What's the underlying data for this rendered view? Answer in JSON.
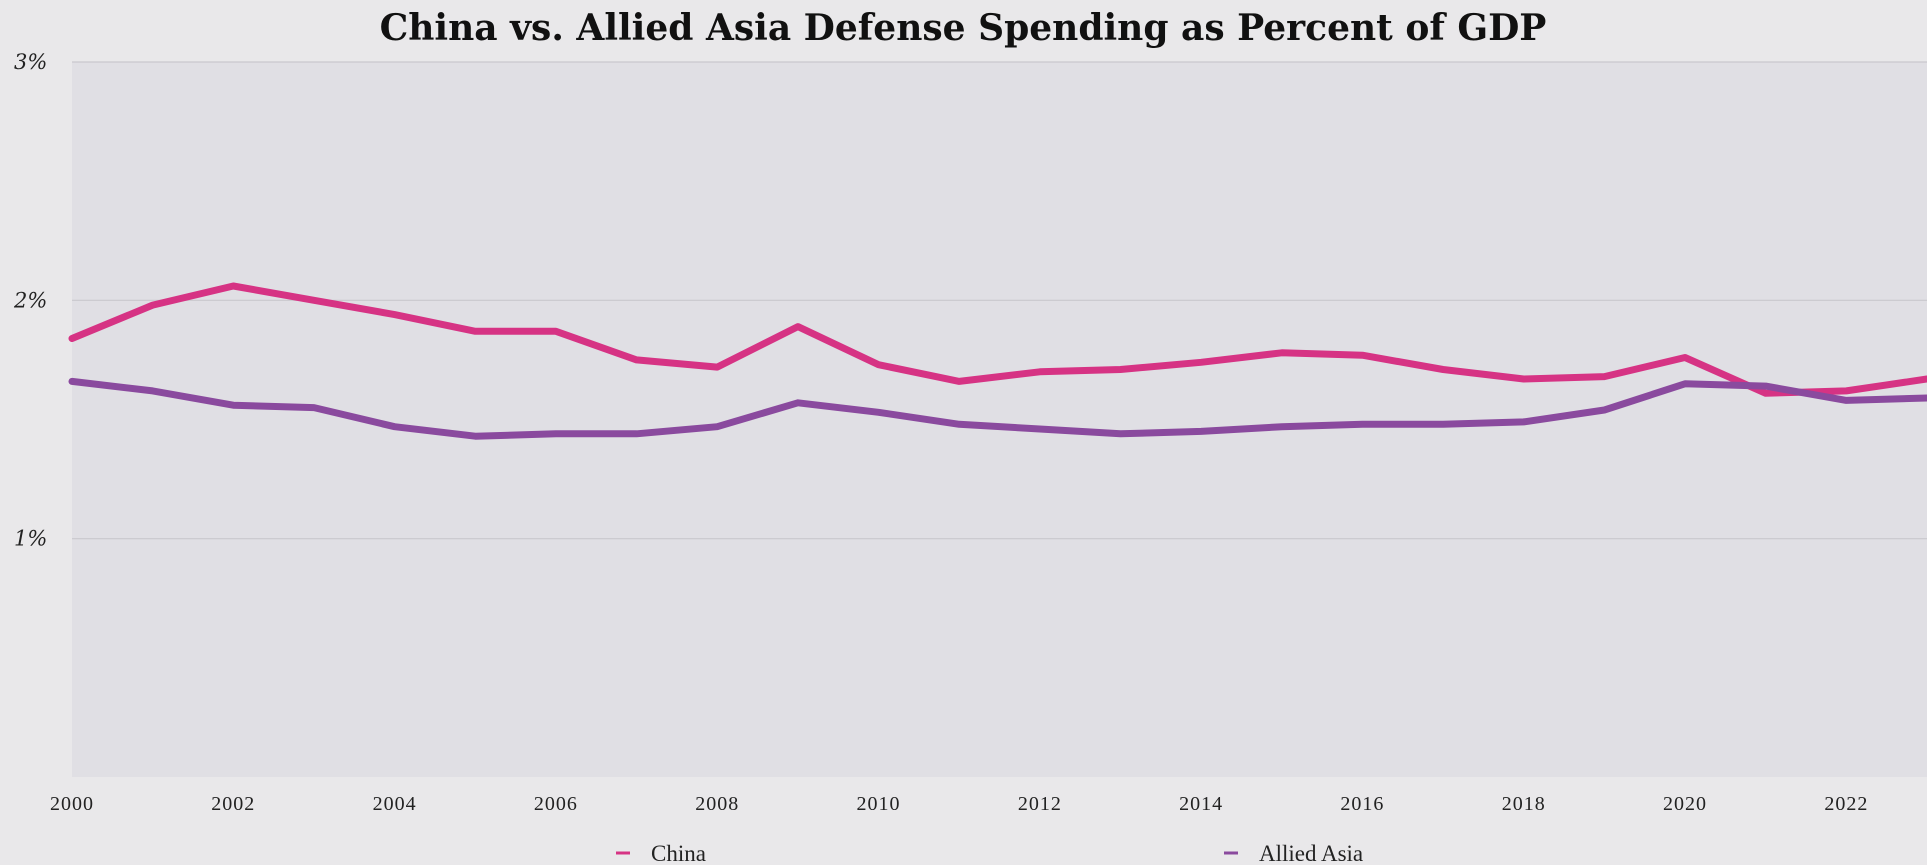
{
  "chart_data": {
    "type": "line",
    "title": "China vs. Allied Asia Defense Spending as Percent of GDP",
    "xlabel": "",
    "ylabel": "",
    "x": [
      2000,
      2001,
      2002,
      2003,
      2004,
      2005,
      2006,
      2007,
      2008,
      2009,
      2010,
      2011,
      2012,
      2013,
      2014,
      2015,
      2016,
      2017,
      2018,
      2019,
      2020,
      2021,
      2022,
      2023
    ],
    "xlim": [
      2000,
      2023
    ],
    "ylim": [
      0,
      3
    ],
    "xticks": [
      "2000",
      "2002",
      "2004",
      "2006",
      "2008",
      "2010",
      "2012",
      "2014",
      "2016",
      "2018",
      "2020",
      "2022"
    ],
    "xtick_values": [
      2000,
      2002,
      2004,
      2006,
      2008,
      2010,
      2012,
      2014,
      2016,
      2018,
      2020,
      2022
    ],
    "yticks": [
      "1%",
      "2%",
      "3%"
    ],
    "ytick_values": [
      1,
      2,
      3
    ],
    "grid": "horizontal",
    "legend_position": "bottom",
    "colors": {
      "background": "#e9e8ea",
      "plot_area": "#e0dfe4",
      "grid": "#c9c8ce"
    },
    "series": [
      {
        "name": "China",
        "color": "#d63384",
        "values": [
          1.84,
          1.98,
          2.06,
          2.0,
          1.94,
          1.87,
          1.87,
          1.75,
          1.72,
          1.89,
          1.73,
          1.66,
          1.7,
          1.71,
          1.74,
          1.78,
          1.77,
          1.71,
          1.67,
          1.68,
          1.76,
          1.61,
          1.62,
          1.67
        ]
      },
      {
        "name": "Allied Asia",
        "color": "#8a4a9e",
        "values": [
          1.66,
          1.62,
          1.56,
          1.55,
          1.47,
          1.43,
          1.44,
          1.44,
          1.47,
          1.57,
          1.53,
          1.48,
          1.46,
          1.44,
          1.45,
          1.47,
          1.48,
          1.48,
          1.49,
          1.54,
          1.65,
          1.64,
          1.58,
          1.59
        ]
      }
    ]
  }
}
